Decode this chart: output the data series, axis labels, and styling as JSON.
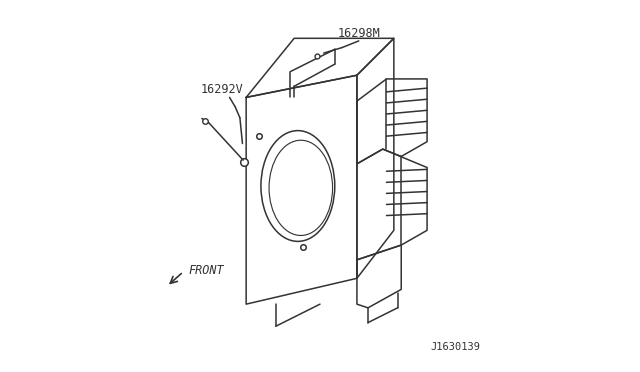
{
  "background_color": "#ffffff",
  "line_color": "#333333",
  "label_color": "#333333",
  "label_16298M": "16298M",
  "label_16292V": "16292V",
  "label_front": "FRONT",
  "label_id": "J1630139",
  "font_size_main": 8.5,
  "font_size_id": 7.5,
  "line_width": 1.1
}
